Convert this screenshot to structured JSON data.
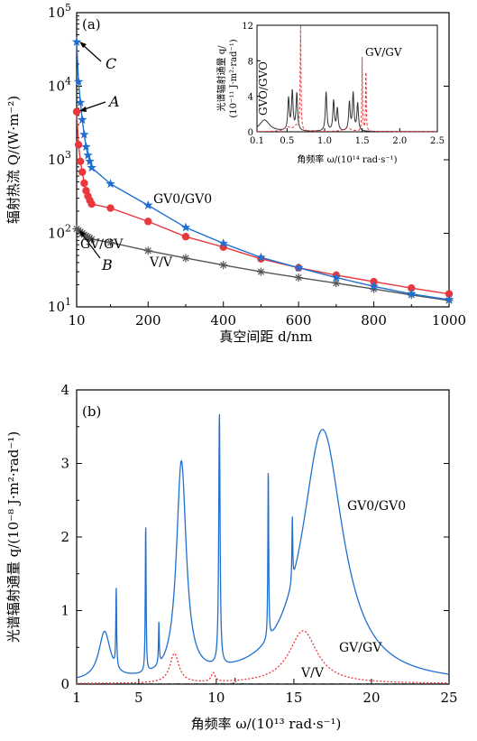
{
  "chart_data": [
    {
      "type": "line",
      "panel_label": "(a)",
      "xlabel": "真空间距 d/nm",
      "ylabel": "辐射热流 Q/(W·m⁻²)",
      "xlim": [
        10,
        1000
      ],
      "ylim": [
        10,
        100000
      ],
      "yscale": "log",
      "x_ticks": [
        "10",
        "200",
        "400",
        "600",
        "800",
        "1000"
      ],
      "y_ticks": [
        "10^1",
        "10^2",
        "10^3",
        "10^4",
        "10^5"
      ],
      "series": [
        {
          "name": "GV0/GV0",
          "color": "#1f6fd1",
          "marker": "star",
          "x": [
            10,
            15,
            20,
            25,
            30,
            35,
            40,
            45,
            50,
            100,
            200,
            300,
            400,
            500,
            600,
            700,
            800,
            900,
            1000
          ],
          "y": [
            40000,
            11500,
            6000,
            3500,
            2200,
            1500,
            1150,
            950,
            780,
            470,
            240,
            120,
            73,
            47,
            34,
            25,
            19,
            15,
            12.5
          ]
        },
        {
          "name": "GV/GV",
          "color": "#e8383d",
          "marker": "circle",
          "x": [
            10,
            15,
            20,
            25,
            30,
            35,
            40,
            45,
            50,
            100,
            200,
            300,
            400,
            500,
            600,
            700,
            800,
            900,
            1000
          ],
          "y": [
            4500,
            1600,
            950,
            680,
            480,
            380,
            320,
            280,
            250,
            220,
            145,
            90,
            65,
            45,
            34,
            27,
            22,
            18,
            15
          ]
        },
        {
          "name": "V/V",
          "color": "#555555",
          "marker": "asterisk",
          "x": [
            10,
            15,
            20,
            25,
            30,
            35,
            40,
            45,
            50,
            100,
            200,
            300,
            400,
            500,
            600,
            700,
            800,
            900,
            1000
          ],
          "y": [
            115,
            110,
            105,
            100,
            96,
            92,
            89,
            86,
            83,
            75,
            58,
            46,
            37,
            30,
            25,
            21,
            17.5,
            14.5,
            12.2
          ]
        }
      ],
      "annotations": [
        {
          "text": "C",
          "x": 10,
          "y": 40000
        },
        {
          "text": "A",
          "x": 10,
          "y": 4500
        },
        {
          "text": "B",
          "x": 10,
          "y": 115
        }
      ],
      "inset": {
        "xlabel": "角频率 ω/(10¹⁴ rad·s⁻¹)",
        "ylabel_line1": "光谱辐射通量 q/",
        "ylabel_line2": "(10⁻¹¹ J·m²·rad⁻¹)",
        "xlim": [
          0.1,
          2.5
        ],
        "ylim": [
          0,
          12
        ],
        "x_ticks": [
          "0.1",
          "0.5",
          "1.0",
          "1.5",
          "2.0",
          "2.5"
        ],
        "y_ticks": [
          "0",
          "4",
          "8",
          "12"
        ],
        "labels": [
          "GVO/GVO",
          "GV/GV"
        ],
        "series": [
          {
            "style": "solid",
            "color": "#333333",
            "peaks": [
              {
                "x": 0.2,
                "y": 1.3,
                "w": 0.08
              },
              {
                "x": 0.52,
                "y": 3.6,
                "w": 0.012
              },
              {
                "x": 0.57,
                "y": 4.4,
                "w": 0.012
              },
              {
                "x": 0.63,
                "y": 4.2,
                "w": 0.012
              },
              {
                "x": 1.02,
                "y": 4.4,
                "w": 0.012
              },
              {
                "x": 1.12,
                "y": 3.4,
                "w": 0.012
              },
              {
                "x": 1.17,
                "y": 2.5,
                "w": 0.012
              },
              {
                "x": 1.33,
                "y": 3.2,
                "w": 0.012
              },
              {
                "x": 1.38,
                "y": 4.2,
                "w": 0.012
              },
              {
                "x": 1.44,
                "y": 3.1,
                "w": 0.012
              }
            ]
          },
          {
            "style": "dashed",
            "color": "#e8383d",
            "peaks": [
              {
                "x": 0.5,
                "y": 0.5,
                "w": 0.05
              },
              {
                "x": 0.68,
                "y": 12.0,
                "w": 0.006
              },
              {
                "x": 0.62,
                "y": 0.6,
                "w": 0.04
              },
              {
                "x": 1.5,
                "y": 8.3,
                "w": 0.005
              },
              {
                "x": 1.55,
                "y": 7.6,
                "w": 0.005
              },
              {
                "x": 1.3,
                "y": 0.4,
                "w": 0.06
              }
            ]
          }
        ]
      }
    },
    {
      "type": "line",
      "panel_label": "(b)",
      "xlabel": "角频率 ω/(10¹³ rad·s⁻¹)",
      "ylabel": "光谱辐射通量 q/(10⁻⁸ J·m²·rad⁻¹)",
      "xlim": [
        1,
        25
      ],
      "ylim": [
        0,
        4
      ],
      "x_ticks": [
        "1",
        "5",
        "10",
        "15",
        "20",
        "25"
      ],
      "y_ticks": [
        "0",
        "1",
        "2",
        "3",
        "4"
      ],
      "series_labels": [
        "GV0/GV0",
        "GV/GV",
        "V/V"
      ],
      "series": [
        {
          "name": "GV0/GV0",
          "style": "solid",
          "color": "#1f6fd1",
          "peaks": [
            {
              "x": 2.8,
              "y": 0.65,
              "w": 0.45
            },
            {
              "x": 3.55,
              "y": 1.08,
              "w": 0.03
            },
            {
              "x": 5.45,
              "y": 2.07,
              "w": 0.03
            },
            {
              "x": 6.3,
              "y": 0.57,
              "w": 0.03
            },
            {
              "x": 7.75,
              "y": 2.92,
              "w": 0.38
            },
            {
              "x": 10.2,
              "y": 3.45,
              "w": 0.05
            },
            {
              "x": 13.35,
              "y": 2.38,
              "w": 0.03
            },
            {
              "x": 14.9,
              "y": 0.88,
              "w": 0.03
            },
            {
              "x": 16.85,
              "y": 3.45,
              "w": 1.6
            }
          ]
        },
        {
          "name": "GV/GV",
          "style": "dotted",
          "color": "#e8383d",
          "peaks": [
            {
              "x": 7.3,
              "y": 0.4,
              "w": 0.35
            },
            {
              "x": 9.8,
              "y": 0.12,
              "w": 0.15
            },
            {
              "x": 15.6,
              "y": 0.72,
              "w": 1.1
            }
          ]
        },
        {
          "name": "V/V",
          "style": "dashdot",
          "color": "#333333",
          "peaks": [
            {
              "x": 11.2,
              "y": 0.08,
              "w": 0.03
            }
          ]
        }
      ]
    }
  ]
}
